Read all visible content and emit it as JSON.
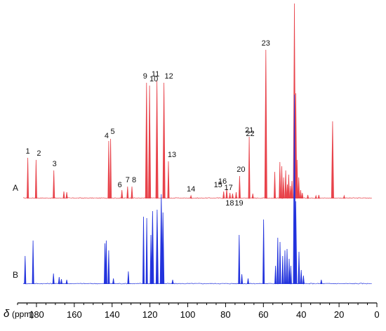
{
  "chart_data": {
    "type": "line",
    "xlabel_symbol": "δ",
    "xlabel_unit": "(ppm)",
    "xlim": [
      190,
      0
    ],
    "x_ticks": [
      180,
      160,
      140,
      120,
      100,
      80,
      60,
      40,
      20,
      0
    ],
    "grid": false,
    "series": [
      {
        "name": "A",
        "color": "#e8424a",
        "baseline_noise": 0.6,
        "peaks": [
          {
            "ppm": 184.6,
            "h": 58,
            "label": "1"
          },
          {
            "ppm": 180.2,
            "h": 55,
            "label": "2"
          },
          {
            "ppm": 170.8,
            "h": 40,
            "label": "3"
          },
          {
            "ppm": 165.5,
            "h": 10
          },
          {
            "ppm": 164.0,
            "h": 9
          },
          {
            "ppm": 141.8,
            "h": 82,
            "label": "4"
          },
          {
            "ppm": 140.8,
            "h": 85,
            "label": "5"
          },
          {
            "ppm": 134.8,
            "h": 12,
            "label": "6"
          },
          {
            "ppm": 131.8,
            "h": 17,
            "label": "7"
          },
          {
            "ppm": 129.5,
            "h": 17,
            "label": "8"
          },
          {
            "ppm": 121.8,
            "h": 165,
            "label": "9"
          },
          {
            "ppm": 120.2,
            "h": 161,
            "label": "10"
          },
          {
            "ppm": 116.3,
            "h": 168,
            "label": "11"
          },
          {
            "ppm": 112.6,
            "h": 165,
            "label": "12"
          },
          {
            "ppm": 110.2,
            "h": 53,
            "label": "13"
          },
          {
            "ppm": 98.3,
            "h": 4,
            "label": "14"
          },
          {
            "ppm": 81.0,
            "h": 10,
            "label": "15"
          },
          {
            "ppm": 79.4,
            "h": 14,
            "label": "16"
          },
          {
            "ppm": 77.7,
            "h": 8,
            "label": "17"
          },
          {
            "ppm": 76.3,
            "h": 7,
            "label": "18"
          },
          {
            "ppm": 74.4,
            "h": 9,
            "label": "19"
          },
          {
            "ppm": 72.6,
            "h": 32,
            "label": "20"
          },
          {
            "ppm": 67.5,
            "h": 88,
            "label": "21"
          },
          {
            "ppm": 65.6,
            "h": 7
          },
          {
            "ppm": 58.7,
            "h": 212,
            "label": "23"
          },
          {
            "ppm": 54.0,
            "h": 38
          },
          {
            "ppm": 51.3,
            "h": 52
          },
          {
            "ppm": 50.3,
            "h": 46
          },
          {
            "ppm": 49.3,
            "h": 30
          },
          {
            "ppm": 48.2,
            "h": 40
          },
          {
            "ppm": 47.3,
            "h": 20
          },
          {
            "ppm": 46.6,
            "h": 34
          },
          {
            "ppm": 45.7,
            "h": 18
          },
          {
            "ppm": 44.9,
            "h": 25
          },
          {
            "ppm": 43.6,
            "h": 278
          },
          {
            "ppm": 42.9,
            "h": 150
          },
          {
            "ppm": 42.2,
            "h": 55
          },
          {
            "ppm": 41.3,
            "h": 30
          },
          {
            "ppm": 40.3,
            "h": 12
          },
          {
            "ppm": 39.4,
            "h": 8
          },
          {
            "ppm": 36.5,
            "h": 5
          },
          {
            "ppm": 32.2,
            "h": 4
          },
          {
            "ppm": 30.7,
            "h": 5
          },
          {
            "ppm": 23.4,
            "h": 110
          },
          {
            "ppm": 17.3,
            "h": 4
          }
        ]
      },
      {
        "name": "B",
        "color": "#2233dd",
        "baseline_noise": 0.6,
        "peaks": [
          {
            "ppm": 186.0,
            "h": 40
          },
          {
            "ppm": 181.8,
            "h": 62
          },
          {
            "ppm": 171.0,
            "h": 15
          },
          {
            "ppm": 168.0,
            "h": 10
          },
          {
            "ppm": 166.8,
            "h": 7
          },
          {
            "ppm": 164.0,
            "h": 6
          },
          {
            "ppm": 143.8,
            "h": 58
          },
          {
            "ppm": 143.1,
            "h": 62
          },
          {
            "ppm": 141.8,
            "h": 48
          },
          {
            "ppm": 139.3,
            "h": 8
          },
          {
            "ppm": 131.4,
            "h": 18
          },
          {
            "ppm": 123.4,
            "h": 96
          },
          {
            "ppm": 121.7,
            "h": 94
          },
          {
            "ppm": 119.5,
            "h": 70
          },
          {
            "ppm": 118.6,
            "h": 104
          },
          {
            "ppm": 116.2,
            "h": 106
          },
          {
            "ppm": 114.0,
            "h": 128
          },
          {
            "ppm": 113.1,
            "h": 102
          },
          {
            "ppm": 108.0,
            "h": 6
          },
          {
            "ppm": 72.8,
            "h": 70
          },
          {
            "ppm": 71.4,
            "h": 14
          },
          {
            "ppm": 68.1,
            "h": 8
          },
          {
            "ppm": 59.9,
            "h": 92
          },
          {
            "ppm": 53.6,
            "h": 26
          },
          {
            "ppm": 52.4,
            "h": 66
          },
          {
            "ppm": 51.2,
            "h": 60
          },
          {
            "ppm": 49.8,
            "h": 40
          },
          {
            "ppm": 48.6,
            "h": 48
          },
          {
            "ppm": 47.5,
            "h": 50
          },
          {
            "ppm": 46.4,
            "h": 36
          },
          {
            "ppm": 45.5,
            "h": 26
          },
          {
            "ppm": 43.6,
            "h": 270
          },
          {
            "ppm": 42.9,
            "h": 118
          },
          {
            "ppm": 41.2,
            "h": 46
          },
          {
            "ppm": 40.0,
            "h": 20
          },
          {
            "ppm": 38.8,
            "h": 12
          },
          {
            "ppm": 29.4,
            "h": 6
          }
        ]
      }
    ]
  }
}
